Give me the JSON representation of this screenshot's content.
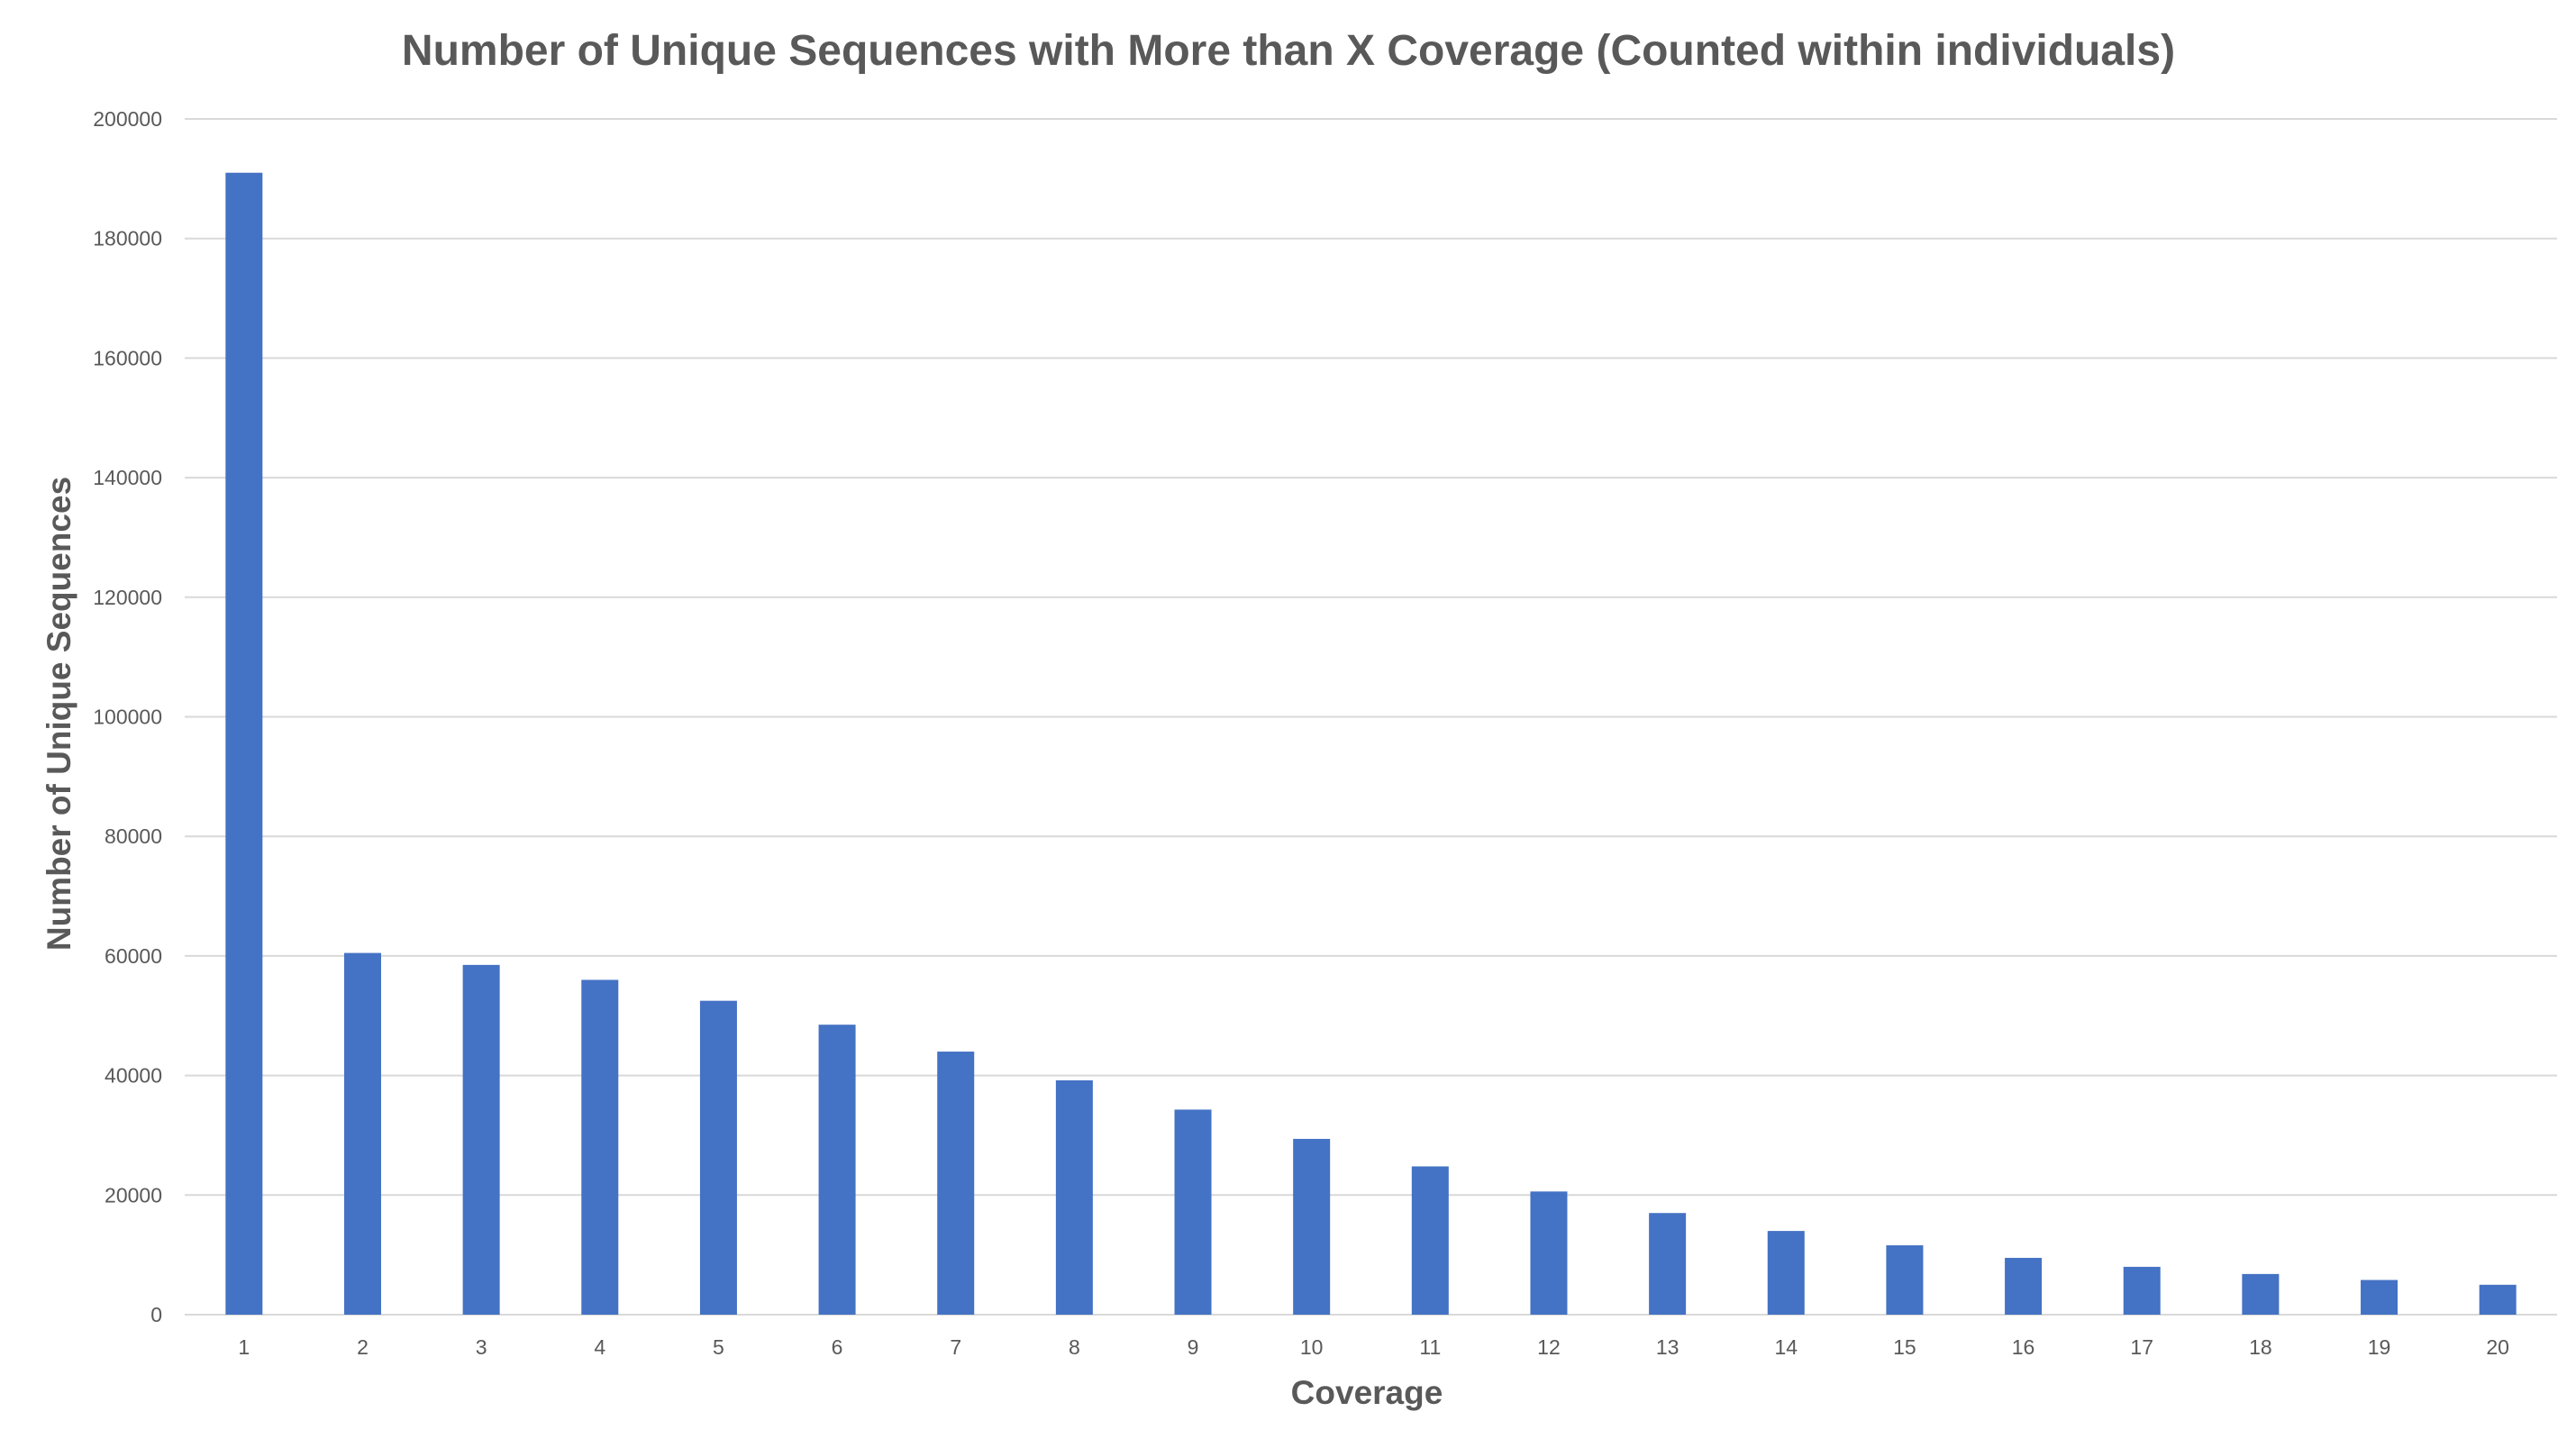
{
  "chart_data": {
    "type": "bar",
    "title": "Number of Unique Sequences with More than X Coverage (Counted within individuals)",
    "xlabel": "Coverage",
    "ylabel": "Number of Unique Sequences",
    "categories": [
      "1",
      "2",
      "3",
      "4",
      "5",
      "6",
      "7",
      "8",
      "9",
      "10",
      "11",
      "12",
      "13",
      "14",
      "15",
      "16",
      "17",
      "18",
      "19",
      "20"
    ],
    "values": [
      191000,
      60500,
      58500,
      56000,
      52500,
      48500,
      44000,
      39200,
      34300,
      29400,
      24800,
      20600,
      17000,
      14000,
      11600,
      9500,
      8000,
      6800,
      5800,
      5000
    ],
    "ylim": [
      0,
      200000
    ],
    "yticks": [
      0,
      20000,
      40000,
      60000,
      80000,
      100000,
      120000,
      140000,
      160000,
      180000,
      200000
    ],
    "ytick_labels": [
      "0",
      "20000",
      "40000",
      "60000",
      "80000",
      "100000",
      "120000",
      "140000",
      "160000",
      "180000",
      "200000"
    ],
    "grid": true,
    "legend": "none",
    "bar_color": "#4472c4"
  }
}
